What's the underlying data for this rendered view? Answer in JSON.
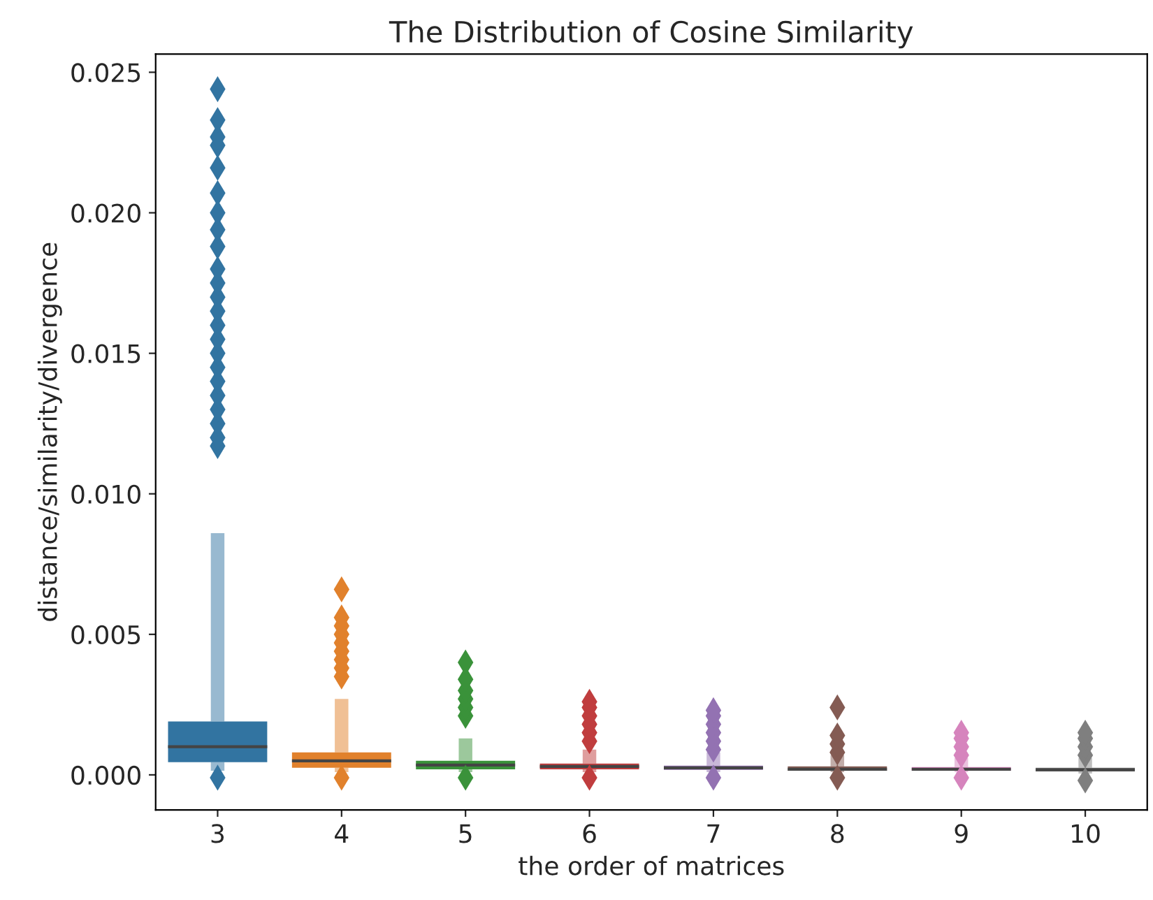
{
  "chart_data": {
    "type": "box",
    "title": "The Distribution of Cosine Similarity",
    "xlabel": "the order of matrices",
    "ylabel": "distance/similarity/divergence",
    "categories": [
      "3",
      "4",
      "5",
      "6",
      "7",
      "8",
      "9",
      "10"
    ],
    "colors": [
      "#3274a1",
      "#e1812c",
      "#3a923a",
      "#c03d3e",
      "#9372b2",
      "#845b53",
      "#d684bd",
      "#7f7f7f"
    ],
    "marker": "diamond",
    "boxes": [
      {
        "low": 0.00015,
        "q1": 0.00045,
        "median": 0.001,
        "q3": 0.0019,
        "high": 0.0086,
        "outliers": [
          -0.0001,
          0.0117,
          0.012,
          0.0125,
          0.013,
          0.0135,
          0.014,
          0.0145,
          0.015,
          0.0155,
          0.016,
          0.0165,
          0.017,
          0.0175,
          0.018,
          0.0188,
          0.0194,
          0.02,
          0.0207,
          0.0216,
          0.0224,
          0.0227,
          0.0233,
          0.0244
        ]
      },
      {
        "low": 0.0001,
        "q1": 0.00025,
        "median": 0.0005,
        "q3": 0.0008,
        "high": 0.0027,
        "outliers": [
          -0.0001,
          0.0035,
          0.0038,
          0.0041,
          0.0044,
          0.0047,
          0.005,
          0.0053,
          0.0056,
          0.0066
        ]
      },
      {
        "low": 0.0001,
        "q1": 0.0002,
        "median": 0.00035,
        "q3": 0.0005,
        "high": 0.0013,
        "outliers": [
          -0.0001,
          0.0021,
          0.0024,
          0.0027,
          0.003,
          0.0034,
          0.004
        ]
      },
      {
        "low": 0.0001,
        "q1": 0.0002,
        "median": 0.0003,
        "q3": 0.0004,
        "high": 0.0009,
        "outliers": [
          -0.0001,
          0.0012,
          0.0015,
          0.0018,
          0.0021,
          0.0024,
          0.0026
        ]
      },
      {
        "low": 0.0001,
        "q1": 0.00018,
        "median": 0.00025,
        "q3": 0.00033,
        "high": 0.0008,
        "outliers": [
          -0.0001,
          0.0009,
          0.0012,
          0.0015,
          0.0018,
          0.0021,
          0.0023
        ]
      },
      {
        "low": 0.0001,
        "q1": 0.00015,
        "median": 0.0002,
        "q3": 0.0003,
        "high": 0.0007,
        "outliers": [
          -0.0001,
          0.0008,
          0.0011,
          0.0014,
          0.0024
        ]
      },
      {
        "low": 0.0001,
        "q1": 0.00015,
        "median": 0.0002,
        "q3": 0.00028,
        "high": 0.0006,
        "outliers": [
          -0.0001,
          0.0007,
          0.001,
          0.0013,
          0.0015
        ]
      },
      {
        "low": 5e-05,
        "q1": 0.00012,
        "median": 0.00018,
        "q3": 0.00025,
        "high": 0.0006,
        "outliers": [
          -0.0002,
          0.0007,
          0.001,
          0.0013,
          0.0015
        ]
      }
    ],
    "ylim": [
      -0.00125,
      0.02565
    ],
    "yticks": [
      {
        "value": 0,
        "label": "0.000"
      },
      {
        "value": 0.005,
        "label": "0.005"
      },
      {
        "value": 0.01,
        "label": "0.010"
      },
      {
        "value": 0.015,
        "label": "0.015"
      },
      {
        "value": 0.02,
        "label": "0.020"
      },
      {
        "value": 0.025,
        "label": "0.025"
      }
    ]
  }
}
